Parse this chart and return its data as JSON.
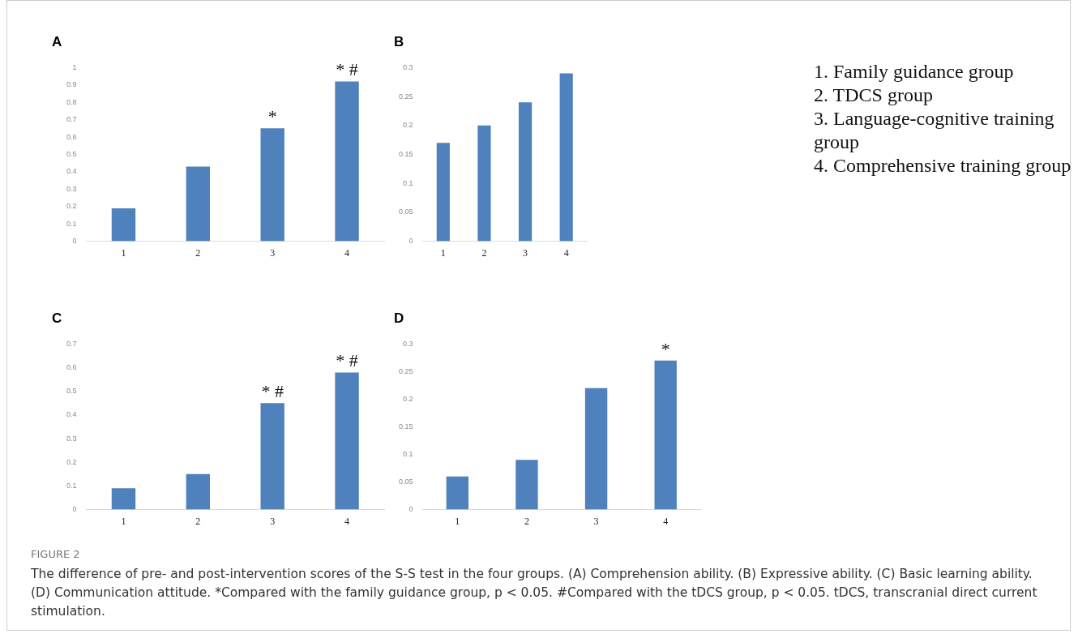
{
  "chart_data": [
    {
      "type": "bar",
      "title": "A",
      "categories": [
        "1",
        "2",
        "3",
        "4"
      ],
      "values": [
        0.19,
        0.43,
        0.65,
        0.92
      ],
      "color": "#4f81bd",
      "ylim": [
        0,
        1
      ],
      "yticks": [
        0,
        0.1,
        0.2,
        0.3,
        0.4,
        0.5,
        0.6,
        0.7,
        0.8,
        0.9,
        1
      ],
      "grid": false,
      "annotations": [
        {
          "text": "*",
          "x": "3",
          "y": 0.65
        },
        {
          "text": "* #",
          "x": "4",
          "y": 0.92
        }
      ]
    },
    {
      "type": "bar",
      "title": "B",
      "categories": [
        "1",
        "2",
        "3",
        "4"
      ],
      "values": [
        0.17,
        0.2,
        0.24,
        0.29
      ],
      "color": "#4f81bd",
      "ylim": [
        0,
        0.3
      ],
      "yticks": [
        0,
        0.05,
        0.1,
        0.15,
        0.2,
        0.25,
        0.3
      ],
      "grid": false
    },
    {
      "type": "bar",
      "title": "C",
      "categories": [
        "1",
        "2",
        "3",
        "4"
      ],
      "values": [
        0.09,
        0.15,
        0.45,
        0.58
      ],
      "color": "#4f81bd",
      "ylim": [
        0,
        0.7
      ],
      "yticks": [
        0,
        0.1,
        0.2,
        0.3,
        0.4,
        0.5,
        0.6,
        0.7
      ],
      "grid": false,
      "annotations": [
        {
          "text": "* #",
          "x": "3",
          "y": 0.45
        },
        {
          "text": "* #",
          "x": "4",
          "y": 0.58
        }
      ]
    },
    {
      "type": "bar",
      "title": "D",
      "categories": [
        "1",
        "2",
        "3",
        "4"
      ],
      "values": [
        0.06,
        0.09,
        0.22,
        0.27
      ],
      "color": "#4f81bd",
      "ylim": [
        0,
        0.3
      ],
      "yticks": [
        0,
        0.05,
        0.1,
        0.15,
        0.2,
        0.25,
        0.3
      ],
      "grid": false,
      "annotations": [
        {
          "text": "*",
          "x": "4",
          "y": 0.27
        }
      ]
    },
    {
      "type": "other",
      "annotations": [
        "1. Family guidance group",
        "2. TDCS group",
        "3. Language-cognitive training group",
        "4. Comprehensive training group",
        "FIGURE 2",
        "The difference of pre- and post-intervention scores of the S-S test in the four groups. (A) Comprehension ability. (B) Expressive ability. (C) Basic learning ability. (D) Communication attitude. *Compared with the family guidance group, p < 0.05. #Compared with the tDCS group, p < 0.05. tDCS, transcranial direct current stimulation."
      ]
    }
  ]
}
